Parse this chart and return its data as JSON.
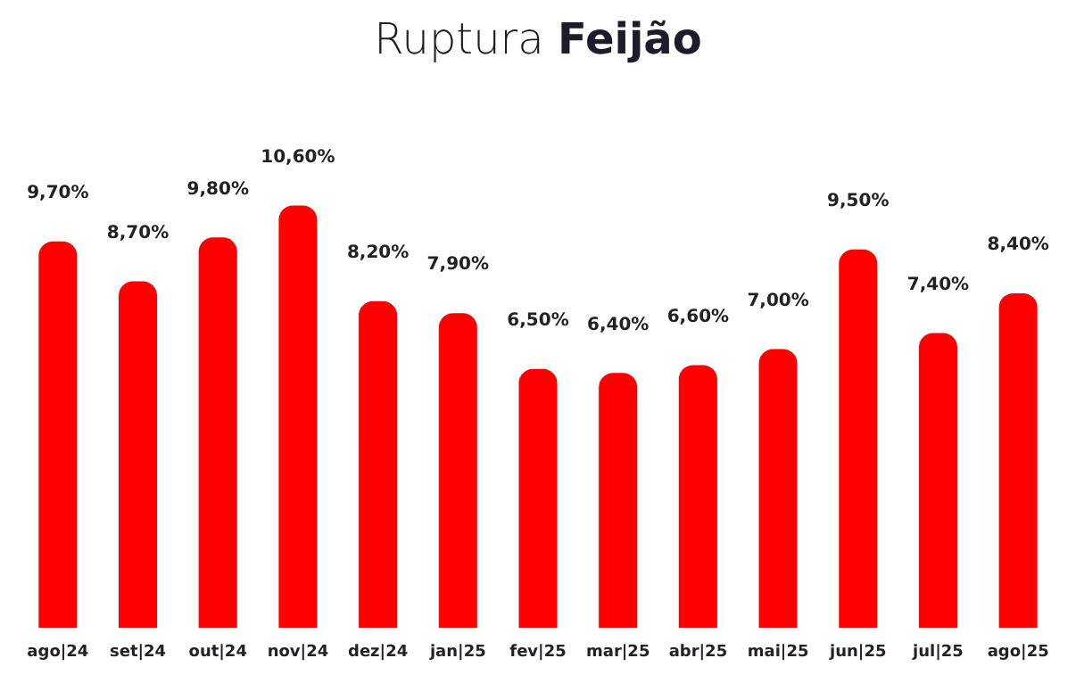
{
  "chart_data": {
    "type": "bar",
    "title": "Ruptura Feijão",
    "categories": [
      "ago|24",
      "set|24",
      "out|24",
      "nov|24",
      "dez|24",
      "jan|25",
      "fev|25",
      "mar|25",
      "abr|25",
      "mai|25",
      "jun|25",
      "jul|25",
      "ago|25"
    ],
    "values": [
      9.7,
      8.7,
      9.8,
      10.6,
      8.2,
      7.9,
      6.5,
      6.4,
      6.6,
      7.0,
      9.5,
      7.4,
      8.4
    ],
    "value_labels": [
      "9,70%",
      "8,70%",
      "9,80%",
      "10,60%",
      "8,20%",
      "7,90%",
      "6,50%",
      "6,40%",
      "6,60%",
      "7,00%",
      "9,50%",
      "7,40%",
      "8,40%"
    ],
    "color": "#ff0000",
    "grid": false,
    "legend": false
  }
}
